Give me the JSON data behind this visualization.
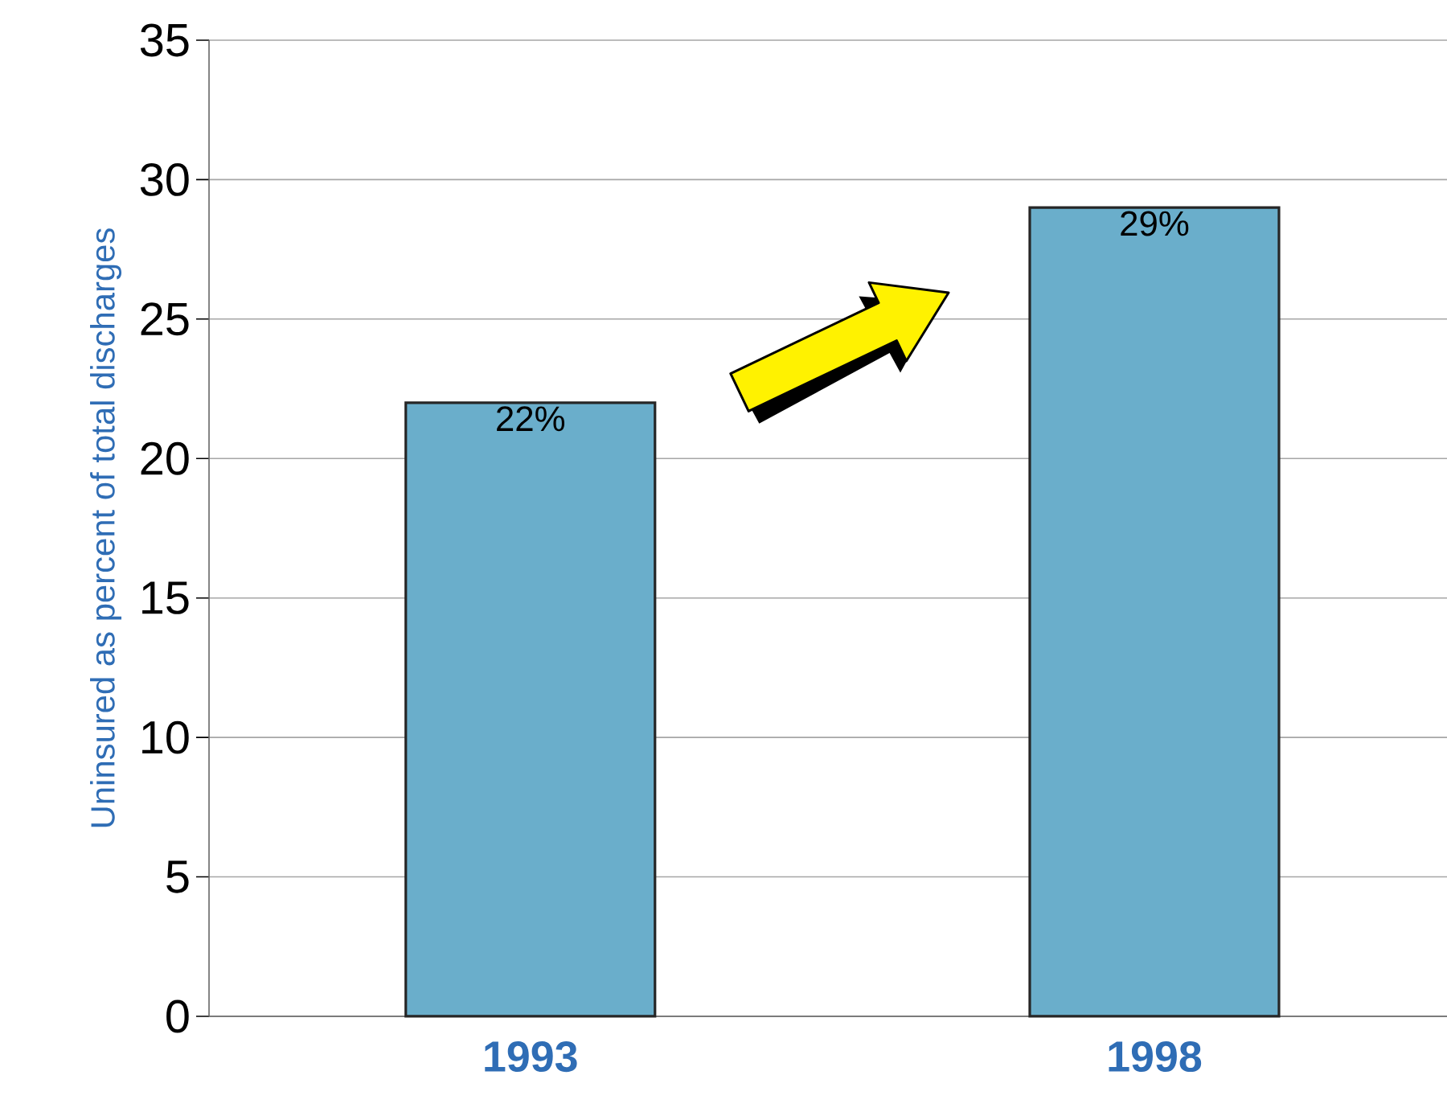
{
  "chart_data": {
    "type": "bar",
    "ylabel": "Uninsured as percent of total discharges",
    "categories": [
      "1993",
      "1998"
    ],
    "values": [
      22,
      29
    ],
    "value_labels": [
      "22%",
      "29%"
    ],
    "color": "#6aaecb",
    "ylim": [
      0,
      35
    ],
    "yticks": [
      0,
      5,
      10,
      15,
      20,
      25,
      30,
      35
    ],
    "grid": "y"
  }
}
